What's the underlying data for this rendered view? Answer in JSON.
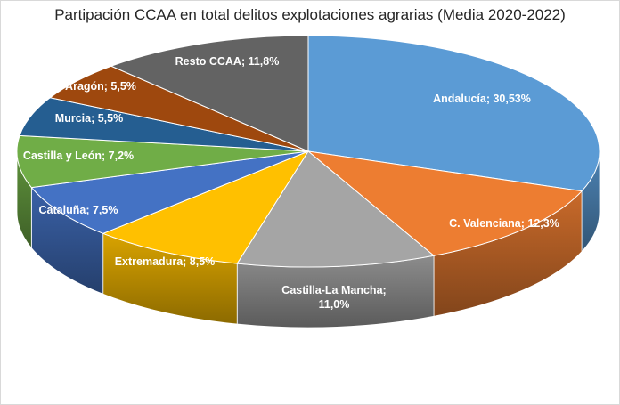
{
  "chart_data": {
    "type": "pie",
    "style": "3d",
    "title": "Partipación CCAA en total delitos explotaciones agrarias (Media 2020-2022)",
    "slices": [
      {
        "label": "Andalucía; 30,53%",
        "name": "Andalucía",
        "value": 30.53,
        "color": "#5b9bd5",
        "text_color": "#ffffff"
      },
      {
        "label": "C. Valenciana; 12,3%",
        "name": "C. Valenciana",
        "value": 12.3,
        "color": "#ed7d31",
        "text_color": "#ffffff"
      },
      {
        "label": "Castilla-La Mancha;\n11,0%",
        "name": "Castilla-La Mancha",
        "value": 11.0,
        "color": "#a5a5a5",
        "text_color": "#ffffff"
      },
      {
        "label": "Extremadura; 8,5%",
        "name": "Extremadura",
        "value": 8.5,
        "color": "#ffc000",
        "text_color": "#ffffff"
      },
      {
        "label": "Cataluña; 7,5%",
        "name": "Cataluña",
        "value": 7.5,
        "color": "#4472c4",
        "text_color": "#ffffff"
      },
      {
        "label": "Castilla y León; 7,2%",
        "name": "Castilla y León",
        "value": 7.2,
        "color": "#70ad47",
        "text_color": "#ffffff"
      },
      {
        "label": "Murcia; 5,5%",
        "name": "Murcia",
        "value": 5.5,
        "color": "#255e91",
        "text_color": "#ffffff"
      },
      {
        "label": "Aragón; 5,5%",
        "name": "Aragón",
        "value": 5.5,
        "color": "#9e480e",
        "text_color": "#ffffff"
      },
      {
        "label": "Resto CCAA; 11,8%",
        "name": "Resto CCAA",
        "value": 11.8,
        "color": "#636363",
        "text_color": "#ffffff"
      }
    ]
  }
}
